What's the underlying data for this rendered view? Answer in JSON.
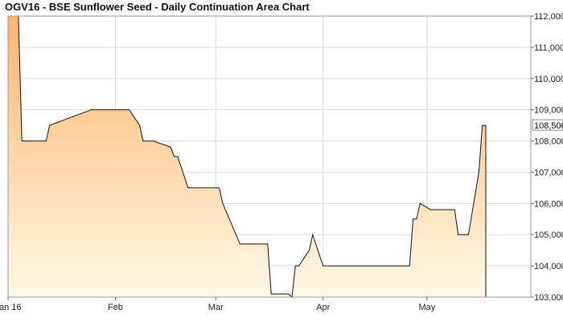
{
  "chart_data": {
    "type": "area",
    "title": "OGV16 - BSE Sunflower Seed - Daily Continuation Area Chart",
    "xlabel": "",
    "ylabel": "",
    "ylim": [
      103000,
      112000
    ],
    "x_range": [
      "2016-01-01",
      "2016-05-31"
    ],
    "x_ticks": [
      {
        "date": "2016-01-01",
        "label": "Jan 16"
      },
      {
        "date": "2016-02-01",
        "label": "Feb"
      },
      {
        "date": "2016-03-01",
        "label": "Mar"
      },
      {
        "date": "2016-04-01",
        "label": "Apr"
      },
      {
        "date": "2016-05-01",
        "label": "May"
      }
    ],
    "y_ticks": [
      {
        "value": 103000,
        "label": "103,000"
      },
      {
        "value": 104000,
        "label": "104,000"
      },
      {
        "value": 105000,
        "label": "105,000"
      },
      {
        "value": 106000,
        "label": "106,000"
      },
      {
        "value": 107000,
        "label": "107,000"
      },
      {
        "value": 108000,
        "label": "108,000"
      },
      {
        "value": 109000,
        "label": "109,000"
      },
      {
        "value": 110000,
        "label": "110,000"
      },
      {
        "value": 111000,
        "label": "111,000"
      },
      {
        "value": 112000,
        "label": "112,000"
      }
    ],
    "last_value_label": "108,500",
    "last_value": 108500,
    "grid": true,
    "axis_position": "right",
    "colors": {
      "fill_top": "#fdb56c",
      "fill_bottom": "#fff9e6",
      "line": "#111111",
      "grid": "#d9d9d9",
      "plot_border": "#999999"
    },
    "series": [
      {
        "x": [
          "2016-01-01",
          "2016-01-04",
          "2016-01-05",
          "2016-01-11",
          "2016-01-12",
          "2016-01-13",
          "2016-01-25",
          "2016-01-26",
          "2016-01-27",
          "2016-02-01",
          "2016-02-02",
          "2016-02-03",
          "2016-02-04",
          "2016-02-05",
          "2016-02-08",
          "2016-02-09",
          "2016-02-10",
          "2016-02-11",
          "2016-02-12",
          "2016-02-17",
          "2016-02-18",
          "2016-02-19",
          "2016-02-22",
          "2016-02-23",
          "2016-02-24",
          "2016-02-25",
          "2016-02-26",
          "2016-03-01",
          "2016-03-02",
          "2016-03-03",
          "2016-03-08",
          "2016-03-09",
          "2016-03-10",
          "2016-03-11",
          "2016-03-14",
          "2016-03-15",
          "2016-03-16",
          "2016-03-17",
          "2016-03-18",
          "2016-03-21",
          "2016-03-22",
          "2016-03-23",
          "2016-03-24",
          "2016-03-25",
          "2016-03-28",
          "2016-03-29",
          "2016-04-01",
          "2016-04-04",
          "2016-04-15",
          "2016-04-18",
          "2016-04-19",
          "2016-04-20",
          "2016-04-21",
          "2016-04-22",
          "2016-04-25",
          "2016-04-26",
          "2016-04-27",
          "2016-04-28",
          "2016-04-29",
          "2016-05-02",
          "2016-05-03",
          "2016-05-04",
          "2016-05-05",
          "2016-05-06",
          "2016-05-09",
          "2016-05-10",
          "2016-05-11",
          "2016-05-12",
          "2016-05-13",
          "2016-05-16",
          "2016-05-17",
          "2016-05-18"
        ],
        "values": [
          112000,
          112000,
          108000,
          108000,
          108000,
          108500,
          109000,
          109000,
          109000,
          109000,
          109000,
          109000,
          109000,
          109000,
          108500,
          108000,
          108000,
          108000,
          108000,
          107800,
          107500,
          107500,
          106500,
          106500,
          106500,
          106500,
          106500,
          106500,
          106500,
          106000,
          104700,
          104700,
          104700,
          104700,
          104700,
          104700,
          104700,
          103100,
          103100,
          103100,
          103100,
          103000,
          104000,
          104000,
          104500,
          105000,
          104000,
          104000,
          104000,
          104000,
          104000,
          104000,
          104000,
          104000,
          104000,
          104000,
          105500,
          105500,
          106000,
          105800,
          105800,
          105800,
          105800,
          105800,
          105800,
          105000,
          105000,
          105000,
          105000,
          107000,
          108500,
          108500
        ]
      }
    ]
  }
}
